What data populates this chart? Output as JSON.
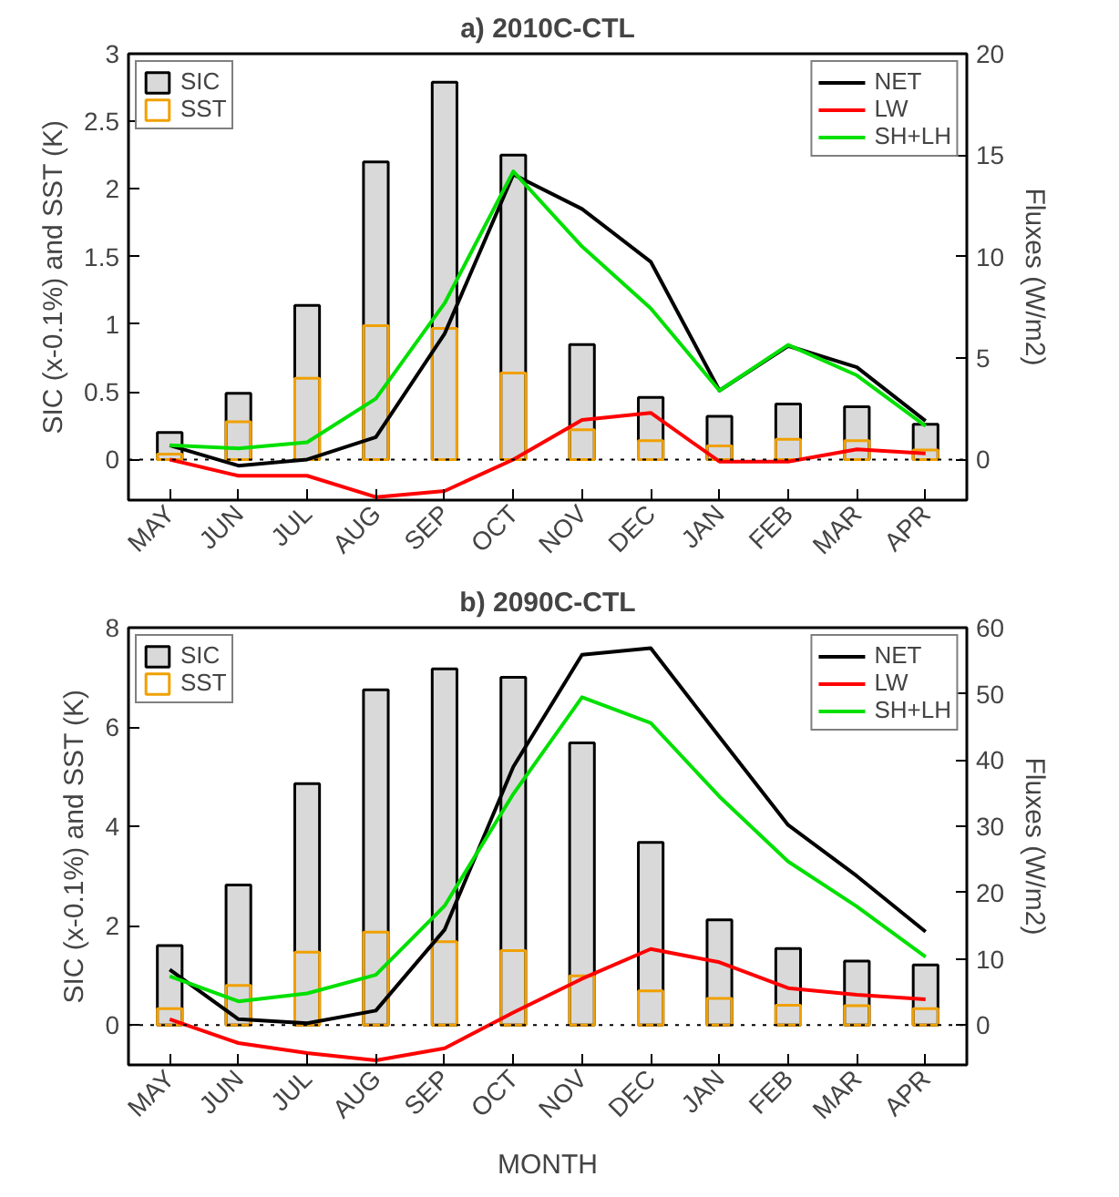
{
  "chart_data": [
    {
      "type": "bar",
      "title": "a) 2010C-CTL",
      "ylabel": "SIC (x-0.1%) and SST (K)",
      "y2label": "Fluxes (W/m2)",
      "categories": [
        "MAY",
        "JUN",
        "JUL",
        "AUG",
        "SEP",
        "OCT",
        "NOV",
        "DEC",
        "JAN",
        "FEB",
        "MAR",
        "APR"
      ],
      "ylim": [
        -0.3,
        3
      ],
      "yticks": [
        0,
        0.5,
        1,
        1.5,
        2,
        2.5,
        3
      ],
      "y2lim": [
        -2,
        20
      ],
      "y2ticks": [
        0,
        5,
        10,
        15,
        20
      ],
      "grid": false,
      "legend": "top left",
      "marker": "none",
      "ref_lines": [
        {
          "axis": "y",
          "value": 0,
          "color": "#000000",
          "line_style": "dotted"
        }
      ],
      "series": [
        {
          "name": "SIC",
          "color": "#d9d9d9",
          "values": [
            0.2,
            0.49,
            1.14,
            2.2,
            2.79,
            2.25,
            0.85,
            0.46,
            0.32,
            0.41,
            0.39,
            0.26
          ]
        },
        {
          "name": "SST",
          "color": "#f0a000",
          "values": [
            0.04,
            0.28,
            0.6,
            0.99,
            0.97,
            0.64,
            0.22,
            0.14,
            0.1,
            0.15,
            0.14,
            0.07
          ]
        },
        {
          "name": "NET",
          "type": "line",
          "axis": "y2",
          "color": "#000000",
          "values": [
            0.7,
            -0.3,
            0,
            1.1,
            6.2,
            14.05,
            12.35,
            9.75,
            3.4,
            5.6,
            4.55,
            1.9
          ]
        },
        {
          "name": "LW",
          "type": "line",
          "axis": "y2",
          "color": "#ff0000",
          "values": [
            0,
            -0.8,
            -0.8,
            -1.85,
            -1.55,
            0,
            1.95,
            2.3,
            -0.1,
            -0.1,
            0.5,
            0.3
          ]
        },
        {
          "name": "SH+LH",
          "type": "line",
          "axis": "y2",
          "color": "#00e000",
          "values": [
            0.7,
            0.55,
            0.85,
            3.0,
            7.7,
            14.2,
            10.5,
            7.45,
            3.4,
            5.65,
            4.15,
            1.65
          ]
        }
      ]
    },
    {
      "type": "bar",
      "title": "b) 2090C-CTL",
      "xlabel": "MONTH",
      "ylabel": "SIC (x-0.1%) and SST (K)",
      "y2label": "Fluxes (W/m2)",
      "categories": [
        "MAY",
        "JUN",
        "JUL",
        "AUG",
        "SEP",
        "OCT",
        "NOV",
        "DEC",
        "JAN",
        "FEB",
        "MAR",
        "APR"
      ],
      "ylim": [
        -0.8,
        8
      ],
      "yticks": [
        0,
        2,
        4,
        6,
        8
      ],
      "y2lim": [
        -6,
        60
      ],
      "y2ticks": [
        0,
        10,
        20,
        30,
        40,
        50,
        60
      ],
      "grid": false,
      "legend": "top left",
      "marker": "none",
      "ref_lines": [
        {
          "axis": "y",
          "value": 0,
          "color": "#000000",
          "line_style": "dotted"
        }
      ],
      "series": [
        {
          "name": "SIC",
          "color": "#d9d9d9",
          "values": [
            1.6,
            2.82,
            4.86,
            6.75,
            7.17,
            7.0,
            5.68,
            3.68,
            2.12,
            1.54,
            1.29,
            1.21
          ]
        },
        {
          "name": "SST",
          "color": "#f0a000",
          "values": [
            0.33,
            0.8,
            1.47,
            1.87,
            1.68,
            1.5,
            0.99,
            0.69,
            0.54,
            0.4,
            0.39,
            0.33
          ]
        },
        {
          "name": "NET",
          "type": "line",
          "axis": "y2",
          "color": "#000000",
          "values": [
            8.4,
            0.9,
            0.3,
            2.2,
            14.4,
            39,
            55.9,
            56.9,
            43.5,
            30.2,
            22.5,
            14.1
          ]
        },
        {
          "name": "LW",
          "type": "line",
          "axis": "y2",
          "color": "#ff0000",
          "values": [
            0.9,
            -2.7,
            -4.2,
            -5.3,
            -3.5,
            1.9,
            7.0,
            11.5,
            9.5,
            5.6,
            4.6,
            3.9
          ]
        },
        {
          "name": "SH+LH",
          "type": "line",
          "axis": "y2",
          "color": "#00e000",
          "values": [
            7.4,
            3.6,
            4.8,
            7.6,
            18.0,
            34.9,
            49.5,
            45.6,
            34.5,
            24.7,
            17.9,
            10.3
          ]
        }
      ]
    }
  ]
}
